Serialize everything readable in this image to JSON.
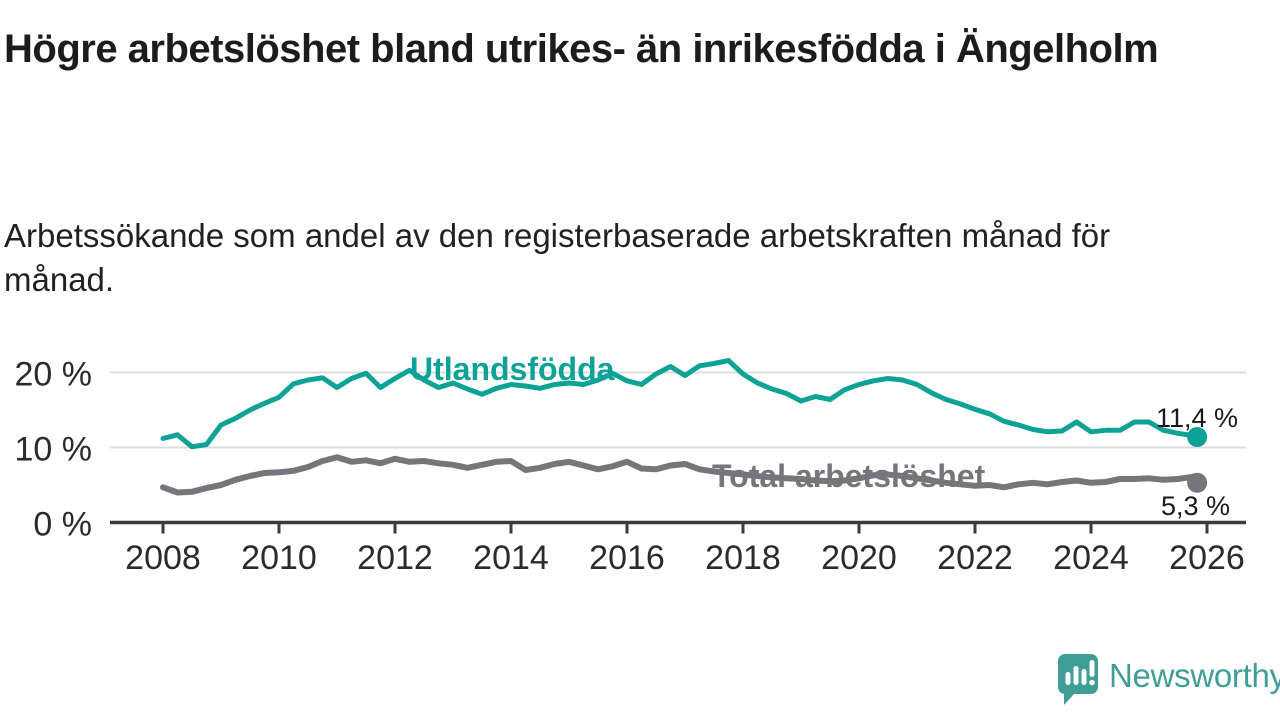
{
  "title": "Högre arbetslöshet bland utrikes- än inrikesfödda i Ängelholm",
  "subtitle": "Arbetssökande som andel av den registerbaserade arbetskraften månad för månad.",
  "branding": {
    "logo_text": "Newsworthy",
    "logo_color": "#3f9e96"
  },
  "chart_data": {
    "type": "line",
    "x_unit": "year (monthly series, plotted quarterly approximation)",
    "x": [
      2008,
      2008.25,
      2008.5,
      2008.75,
      2009,
      2009.25,
      2009.5,
      2009.75,
      2010,
      2010.25,
      2010.5,
      2010.75,
      2011,
      2011.25,
      2011.5,
      2011.75,
      2012,
      2012.25,
      2012.5,
      2012.75,
      2013,
      2013.25,
      2013.5,
      2013.75,
      2014,
      2014.25,
      2014.5,
      2014.75,
      2015,
      2015.25,
      2015.5,
      2015.75,
      2016,
      2016.25,
      2016.5,
      2016.75,
      2017,
      2017.25,
      2017.5,
      2017.75,
      2018,
      2018.25,
      2018.5,
      2018.75,
      2019,
      2019.25,
      2019.5,
      2019.75,
      2020,
      2020.25,
      2020.5,
      2020.75,
      2021,
      2021.25,
      2021.5,
      2021.75,
      2022,
      2022.25,
      2022.5,
      2022.75,
      2023,
      2023.25,
      2023.5,
      2023.75,
      2024,
      2024.25,
      2024.5,
      2024.75,
      2025,
      2025.25,
      2025.5,
      2025.75,
      2025.83
    ],
    "series": [
      {
        "name": "Utlandsfödda",
        "color": "#0ca295",
        "end_label": "11,4 %",
        "end_value": 11.4,
        "values": [
          11.2,
          11.7,
          10.1,
          10.4,
          13.0,
          13.9,
          15.0,
          15.9,
          16.7,
          18.5,
          19.0,
          19.3,
          18.0,
          19.2,
          19.9,
          18.0,
          19.2,
          20.3,
          19.0,
          18.0,
          18.6,
          17.8,
          17.1,
          17.9,
          18.4,
          18.2,
          17.9,
          18.4,
          18.6,
          18.4,
          19.0,
          19.9,
          18.9,
          18.4,
          19.8,
          20.8,
          19.6,
          20.9,
          21.2,
          21.6,
          19.8,
          18.6,
          17.8,
          17.2,
          16.2,
          16.8,
          16.4,
          17.7,
          18.4,
          18.9,
          19.2,
          19.0,
          18.4,
          17.3,
          16.4,
          15.8,
          15.1,
          14.5,
          13.5,
          13.0,
          12.4,
          12.1,
          12.2,
          13.4,
          12.1,
          12.3,
          12.3,
          13.4,
          13.4,
          12.3,
          11.9,
          11.6,
          11.4
        ]
      },
      {
        "name": "Total arbetslöshet",
        "color": "#75757b",
        "end_label": "5,3 %",
        "end_value": 5.3,
        "values": [
          4.7,
          4.0,
          4.1,
          4.6,
          5.0,
          5.7,
          6.2,
          6.6,
          6.7,
          6.9,
          7.4,
          8.2,
          8.7,
          8.1,
          8.3,
          7.9,
          8.5,
          8.1,
          8.2,
          7.9,
          7.7,
          7.3,
          7.7,
          8.1,
          8.2,
          7.0,
          7.3,
          7.8,
          8.1,
          7.6,
          7.1,
          7.5,
          8.1,
          7.2,
          7.1,
          7.6,
          7.8,
          7.1,
          6.8,
          6.6,
          6.4,
          6.2,
          6.0,
          5.9,
          5.8,
          5.6,
          5.5,
          5.6,
          5.9,
          6.3,
          6.4,
          6.2,
          5.9,
          5.6,
          5.3,
          5.1,
          4.9,
          5.0,
          4.7,
          5.1,
          5.3,
          5.1,
          5.4,
          5.6,
          5.3,
          5.4,
          5.8,
          5.8,
          5.9,
          5.7,
          5.8,
          6.1,
          5.3
        ]
      }
    ],
    "xticks": [
      2008,
      2010,
      2012,
      2014,
      2016,
      2018,
      2020,
      2022,
      2024,
      2026
    ],
    "yticks": [
      {
        "value": 0,
        "label": "0 %"
      },
      {
        "value": 10,
        "label": "10 %"
      },
      {
        "value": 20,
        "label": "20 %"
      }
    ],
    "ylim": [
      0,
      23.5
    ],
    "xlim": [
      2008,
      2026.7
    ],
    "grid": "horizontal",
    "legend_position": "inline-on-line"
  }
}
